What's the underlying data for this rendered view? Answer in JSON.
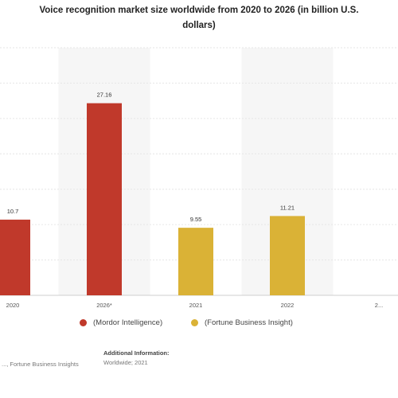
{
  "chart_data": {
    "type": "bar",
    "title_lines": [
      "Voice recognition market size worldwide from 2020 to 2026 (in billion U.S.",
      "dollars)"
    ],
    "categories": [
      "2020",
      "2026*",
      "2021",
      "2022",
      "2..."
    ],
    "series": [
      {
        "name": "(Mordor Intelligence)",
        "color": "#c0392b",
        "values": [
          10.7,
          27.16,
          null,
          null,
          null
        ],
        "labels": [
          "10.7",
          "27.16",
          "",
          "",
          ""
        ]
      },
      {
        "name": "(Fortune Business Insight)",
        "color": "#dab236",
        "values": [
          null,
          null,
          9.55,
          11.21,
          null
        ],
        "labels": [
          "",
          "",
          "9.55",
          "11.21",
          ""
        ]
      }
    ],
    "ylim": [
      0,
      35
    ],
    "grid": true,
    "legend_position": "bottom"
  },
  "footer": {
    "source_partial": "..., Fortune Business Insights",
    "additional_label": "Additional Information:",
    "additional_value": "Worldwide; 2021"
  }
}
